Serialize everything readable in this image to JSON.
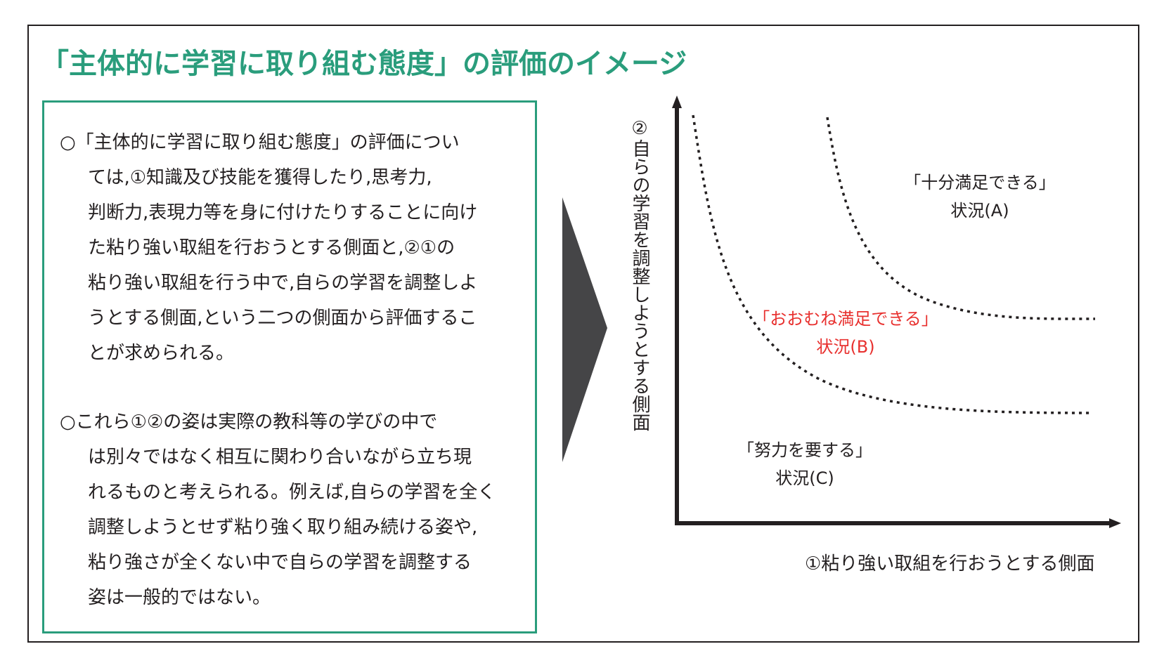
{
  "title": "「主体的に学習に取り組む態度」の評価のイメージ",
  "left_panel": {
    "paragraph1": [
      "○「主体的に学習に取り組む態度」の評価につい",
      "ては,①知識及び技能を獲得したり,思考力,",
      "判断力,表現力等を身に付けたりすることに向け",
      "た粘り強い取組を行おうとする側面と,②①の",
      "粘り強い取組を行う中で,自らの学習を調整しよ",
      "うとする側面,という二つの側面から評価するこ",
      "とが求められる。"
    ],
    "paragraph2": [
      "○これら①②の姿は実際の教科等の学びの中で",
      "は別々ではなく相互に関わり合いながら立ち現",
      "れるものと考えられる。例えば,自らの学習を全く",
      "調整しようとせず粘り強く取り組み続ける姿や,",
      "粘り強さが全くない中で自らの学習を調整する",
      "姿は一般的ではない。"
    ]
  },
  "diagram": {
    "y_axis_label": "②自らの学習を調整しようとする側面",
    "x_axis_label": "①粘り強い取組を行おうとする側面",
    "regions": {
      "A": {
        "line1": "「十分満足できる」",
        "line2": "状況(A)"
      },
      "B": {
        "line1": "「おおむね満足できる」",
        "line2": "状況(B)"
      },
      "C": {
        "line1": "「努力を要する」",
        "line2": "状況(C)"
      }
    },
    "colors": {
      "accent": "#2a9d7c",
      "highlight": "#e8312f",
      "arrow": "#454547",
      "ink": "#231f20"
    }
  }
}
